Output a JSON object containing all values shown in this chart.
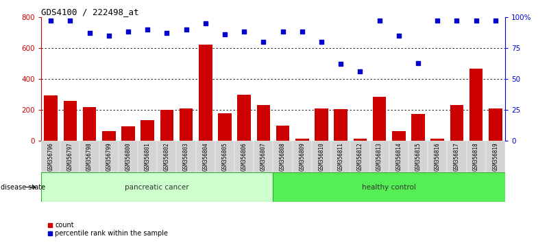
{
  "title": "GDS4100 / 222498_at",
  "samples": [
    "GSM356796",
    "GSM356797",
    "GSM356798",
    "GSM356799",
    "GSM356800",
    "GSM356801",
    "GSM356802",
    "GSM356803",
    "GSM356804",
    "GSM356805",
    "GSM356806",
    "GSM356807",
    "GSM356808",
    "GSM356809",
    "GSM356810",
    "GSM356811",
    "GSM356812",
    "GSM356813",
    "GSM356814",
    "GSM356815",
    "GSM356816",
    "GSM356817",
    "GSM356818",
    "GSM356819"
  ],
  "counts_all": [
    295,
    260,
    220,
    65,
    95,
    135,
    200,
    210,
    620,
    180,
    300,
    230,
    100,
    15,
    210,
    205,
    15,
    285,
    65,
    175,
    15,
    230,
    465,
    210
  ],
  "percentile_ranks_all": [
    97,
    97,
    87,
    85,
    88,
    90,
    87,
    90,
    95,
    86,
    88,
    80,
    88,
    88,
    80,
    62,
    56,
    97,
    85,
    63,
    97,
    97,
    97,
    97
  ],
  "bar_color": "#cc0000",
  "dot_color": "#0000cc",
  "n_pancreatic": 12,
  "ylim_left": [
    0,
    800
  ],
  "ylim_right": [
    0,
    100
  ],
  "yticks_left": [
    0,
    200,
    400,
    600,
    800
  ],
  "yticks_right": [
    0,
    25,
    50,
    75,
    100
  ],
  "ytick_labels_right": [
    "0",
    "25",
    "50",
    "75",
    "100%"
  ],
  "bg_color": "#ffffff",
  "pancreatic_color": "#ccffcc",
  "healthy_color": "#55ee55",
  "grid_color": "#000000",
  "label_bg_color": "#d4d4d4"
}
